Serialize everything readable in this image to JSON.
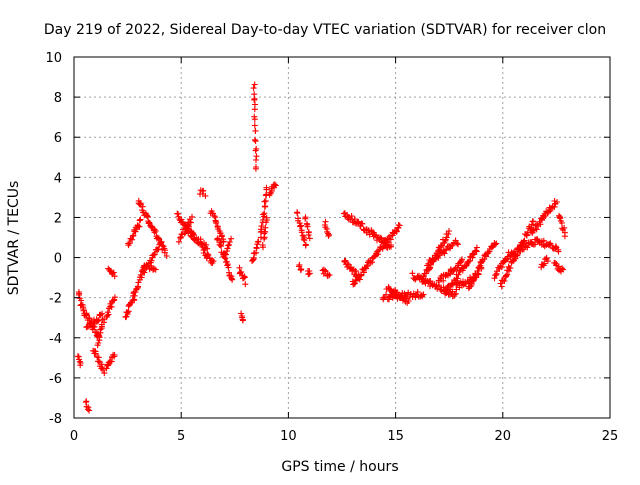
{
  "chart_data": {
    "type": "scatter",
    "title": "Day 219 of 2022, Sidereal Day-to-day VTEC variation (SDTVAR) for receiver clon",
    "xlabel": "GPS time / hours",
    "ylabel": "SDTVAR / TECUs",
    "xlim": [
      0,
      25
    ],
    "ylim": [
      -8,
      10
    ],
    "xticks": [
      0,
      5,
      10,
      15,
      20,
      25
    ],
    "yticks": [
      -8,
      -6,
      -4,
      -2,
      0,
      2,
      4,
      6,
      8,
      10
    ],
    "xtick_labels": [
      "0",
      "5",
      "10",
      "15",
      "20",
      "25"
    ],
    "ytick_labels": [
      "-8",
      "-6",
      "-4",
      "-2",
      "0",
      "2",
      "4",
      "6",
      "8",
      "10"
    ],
    "grid": true,
    "marker": "+",
    "color": "#ff0000",
    "segments": [
      {
        "x": [
          0.2,
          0.55
        ],
        "y": [
          -1.8,
          -3.0
        ]
      },
      {
        "x": [
          0.2,
          0.3
        ],
        "y": [
          -4.8,
          -5.4
        ]
      },
      {
        "x": [
          0.5,
          1.2
        ],
        "y": [
          -2.8,
          -4.0
        ]
      },
      {
        "x": [
          0.6,
          1.3
        ],
        "y": [
          -3.5,
          -2.9
        ]
      },
      {
        "x": [
          0.55,
          0.7
        ],
        "y": [
          -7.2,
          -7.7
        ]
      },
      {
        "x": [
          0.9,
          1.4
        ],
        "y": [
          -4.6,
          -5.7
        ]
      },
      {
        "x": [
          1.1,
          1.4
        ],
        "y": [
          -4.3,
          -3.0
        ]
      },
      {
        "x": [
          1.5,
          1.9
        ],
        "y": [
          -5.5,
          -4.8
        ]
      },
      {
        "x": [
          1.5,
          1.9
        ],
        "y": [
          -3.0,
          -1.9
        ]
      },
      {
        "x": [
          1.6,
          1.9
        ],
        "y": [
          -0.6,
          -0.9
        ]
      },
      {
        "x": [
          2.4,
          2.8
        ],
        "y": [
          -3.0,
          -1.8
        ]
      },
      {
        "x": [
          2.5,
          3.1
        ],
        "y": [
          0.6,
          1.8
        ]
      },
      {
        "x": [
          2.8,
          3.3
        ],
        "y": [
          -2.1,
          -0.3
        ]
      },
      {
        "x": [
          3.0,
          3.5
        ],
        "y": [
          2.8,
          1.8
        ]
      },
      {
        "x": [
          3.2,
          4.0
        ],
        "y": [
          -0.8,
          0.6
        ]
      },
      {
        "x": [
          3.5,
          4.3
        ],
        "y": [
          1.8,
          0.2
        ]
      },
      {
        "x": [
          3.5,
          3.8
        ],
        "y": [
          -0.5,
          -0.7
        ]
      },
      {
        "x": [
          4.8,
          5.6
        ],
        "y": [
          2.1,
          1.0
        ]
      },
      {
        "x": [
          4.9,
          5.5
        ],
        "y": [
          0.9,
          1.9
        ]
      },
      {
        "x": [
          5.2,
          6.2
        ],
        "y": [
          1.4,
          0.5
        ]
      },
      {
        "x": [
          5.9,
          6.1
        ],
        "y": [
          3.3,
          3.2
        ]
      },
      {
        "x": [
          6.0,
          6.5
        ],
        "y": [
          0.4,
          -0.3
        ]
      },
      {
        "x": [
          6.4,
          7.0
        ],
        "y": [
          2.3,
          0.8
        ]
      },
      {
        "x": [
          6.7,
          7.4
        ],
        "y": [
          1.0,
          -1.2
        ]
      },
      {
        "x": [
          7.0,
          7.3
        ],
        "y": [
          0.0,
          0.9
        ]
      },
      {
        "x": [
          7.7,
          8.0
        ],
        "y": [
          -0.6,
          -1.2
        ]
      },
      {
        "x": [
          7.8,
          7.9
        ],
        "y": [
          -2.9,
          -3.2
        ]
      },
      {
        "x": [
          8.3,
          8.6
        ],
        "y": [
          -0.2,
          0.8
        ]
      },
      {
        "x": [
          8.4,
          8.5
        ],
        "y": [
          8.7,
          4.4
        ]
      },
      {
        "x": [
          8.7,
          9.0
        ],
        "y": [
          1.0,
          3.5
        ]
      },
      {
        "x": [
          8.8,
          9.0
        ],
        "y": [
          0.5,
          2.0
        ]
      },
      {
        "x": [
          9.1,
          9.4
        ],
        "y": [
          3.1,
          3.7
        ]
      },
      {
        "x": [
          10.4,
          10.8
        ],
        "y": [
          2.2,
          0.6
        ]
      },
      {
        "x": [
          10.5,
          10.6
        ],
        "y": [
          -0.4,
          -0.7
        ]
      },
      {
        "x": [
          10.8,
          11.0
        ],
        "y": [
          2.0,
          1.0
        ]
      },
      {
        "x": [
          10.9,
          11.0
        ],
        "y": [
          -0.7,
          -0.9
        ]
      },
      {
        "x": [
          11.6,
          11.9
        ],
        "y": [
          -0.6,
          -1.0
        ]
      },
      {
        "x": [
          11.7,
          11.9
        ],
        "y": [
          1.8,
          1.0
        ]
      },
      {
        "x": [
          12.6,
          14.8
        ],
        "y": [
          2.2,
          0.5
        ]
      },
      {
        "x": [
          12.6,
          13.3
        ],
        "y": [
          -0.2,
          -1.0
        ]
      },
      {
        "x": [
          13.0,
          15.2
        ],
        "y": [
          -1.3,
          1.6
        ]
      },
      {
        "x": [
          14.4,
          16.3
        ],
        "y": [
          -2.0,
          -1.8
        ]
      },
      {
        "x": [
          14.6,
          15.6
        ],
        "y": [
          -1.5,
          -2.2
        ]
      },
      {
        "x": [
          15.8,
          17.8
        ],
        "y": [
          -0.9,
          -1.9
        ]
      },
      {
        "x": [
          16.2,
          17.5
        ],
        "y": [
          -1.2,
          1.3
        ]
      },
      {
        "x": [
          16.5,
          17.9
        ],
        "y": [
          -0.3,
          0.8
        ]
      },
      {
        "x": [
          17.0,
          18.1
        ],
        "y": [
          -1.2,
          -0.2
        ]
      },
      {
        "x": [
          17.3,
          18.8
        ],
        "y": [
          -1.8,
          0.4
        ]
      },
      {
        "x": [
          17.8,
          18.9
        ],
        "y": [
          -1.5,
          -0.8
        ]
      },
      {
        "x": [
          18.4,
          19.0
        ],
        "y": [
          -1.5,
          -0.4
        ]
      },
      {
        "x": [
          18.9,
          19.7
        ],
        "y": [
          -0.4,
          0.8
        ]
      },
      {
        "x": [
          19.6,
          20.4
        ],
        "y": [
          -0.9,
          0.3
        ]
      },
      {
        "x": [
          19.9,
          21.4
        ],
        "y": [
          -1.4,
          1.8
        ]
      },
      {
        "x": [
          20.4,
          21.5
        ],
        "y": [
          0.2,
          0.8
        ]
      },
      {
        "x": [
          21.3,
          22.5
        ],
        "y": [
          1.2,
          2.8
        ]
      },
      {
        "x": [
          21.5,
          22.6
        ],
        "y": [
          0.9,
          0.4
        ]
      },
      {
        "x": [
          21.8,
          22.1
        ],
        "y": [
          -0.4,
          -0.1
        ]
      },
      {
        "x": [
          22.4,
          22.8
        ],
        "y": [
          -0.3,
          -0.7
        ]
      },
      {
        "x": [
          22.6,
          22.9
        ],
        "y": [
          2.1,
          1.2
        ]
      }
    ]
  }
}
